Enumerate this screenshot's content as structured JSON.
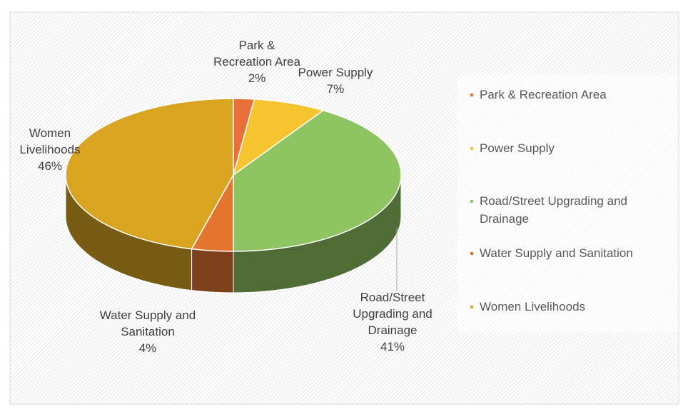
{
  "chart_data": {
    "type": "pie",
    "categories": [
      "Park & Recreation Area",
      "Power Supply",
      "Road/Street Upgrading and Drainage",
      "Water Supply and Sanitation",
      "Women Livelihoods"
    ],
    "values": [
      2,
      7,
      41,
      4,
      46
    ],
    "value_labels": [
      "2%",
      "7%",
      "41%",
      "4%",
      "46%"
    ],
    "colors": [
      "#e8703a",
      "#f6c42e",
      "#8fc463",
      "#e3752f",
      "#d9a521"
    ],
    "legend": "right"
  }
}
